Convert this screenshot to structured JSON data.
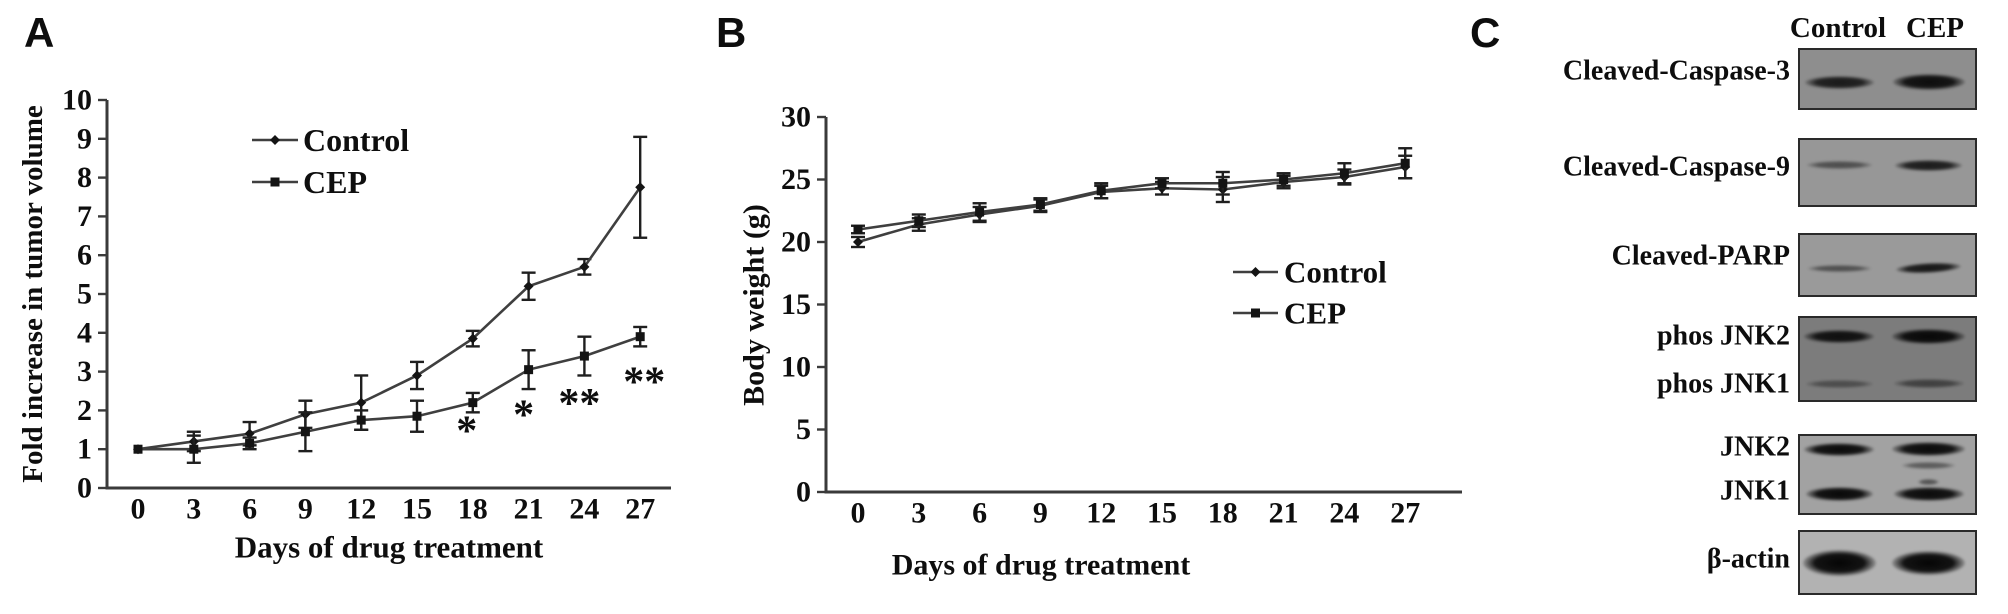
{
  "panel_a": {
    "label": "A"
  },
  "panel_b": {
    "label": "B"
  },
  "panel_c": {
    "label": "C",
    "lane_headers": [
      "Control",
      "CEP"
    ],
    "blots": [
      {
        "labels": [
          "Cleaved-Caspase-3"
        ],
        "bg": "#8e8e8e",
        "bands": [
          {
            "row": 0.56,
            "lane": 0,
            "intensity": 0.85,
            "w": 0.39,
            "h": 13
          },
          {
            "row": 0.56,
            "lane": 1,
            "intensity": 0.95,
            "w": 0.41,
            "h": 16
          }
        ]
      },
      {
        "labels": [
          "Cleaved-Caspase-9"
        ],
        "bg": "#979797",
        "bands": [
          {
            "row": 0.39,
            "lane": 0,
            "intensity": 0.5,
            "w": 0.37,
            "h": 8
          },
          {
            "row": 0.39,
            "lane": 1,
            "intensity": 0.85,
            "w": 0.38,
            "h": 11
          }
        ]
      },
      {
        "labels": [
          "Cleaved-PARP"
        ],
        "bg": "#9a9a9a",
        "bands": [
          {
            "row": 0.55,
            "lane": 0,
            "intensity": 0.5,
            "w": 0.36,
            "h": 7
          },
          {
            "row": 0.55,
            "lane": 1,
            "intensity": 0.88,
            "w": 0.37,
            "h": 10,
            "tilt": -3
          }
        ]
      },
      {
        "labels": [
          "phos JNK2",
          "phos JNK1"
        ],
        "bg": "#7c7c7c",
        "bands": [
          {
            "row": 0.23,
            "lane": 0,
            "intensity": 0.92,
            "w": 0.4,
            "h": 13
          },
          {
            "row": 0.23,
            "lane": 1,
            "intensity": 0.98,
            "w": 0.42,
            "h": 15
          },
          {
            "row": 0.8,
            "lane": 0,
            "intensity": 0.4,
            "w": 0.38,
            "h": 8
          },
          {
            "row": 0.8,
            "lane": 1,
            "intensity": 0.5,
            "w": 0.4,
            "h": 9
          }
        ]
      },
      {
        "labels": [
          "JNK2",
          "JNK1"
        ],
        "bg": "#a2a2a2",
        "bands": [
          {
            "row": 0.17,
            "lane": 0,
            "intensity": 0.97,
            "w": 0.4,
            "h": 13
          },
          {
            "row": 0.17,
            "lane": 1,
            "intensity": 0.97,
            "w": 0.42,
            "h": 14
          },
          {
            "row": 0.38,
            "lane": 1,
            "intensity": 0.45,
            "w": 0.3,
            "h": 7
          },
          {
            "row": 0.6,
            "lane": 1,
            "intensity": 0.5,
            "w": 0.12,
            "h": 6
          },
          {
            "row": 0.75,
            "lane": 0,
            "intensity": 0.98,
            "w": 0.38,
            "h": 14
          },
          {
            "row": 0.75,
            "lane": 1,
            "intensity": 0.97,
            "w": 0.4,
            "h": 14
          }
        ]
      },
      {
        "labels": [
          "β-actin"
        ],
        "bg": "#b2b2b2",
        "bands": [
          {
            "row": 0.51,
            "lane": 0,
            "intensity": 1.0,
            "w": 0.42,
            "h": 26
          },
          {
            "row": 0.51,
            "lane": 1,
            "intensity": 1.0,
            "w": 0.42,
            "h": 24
          }
        ]
      }
    ]
  },
  "chart_data": [
    {
      "type": "line",
      "panel": "A",
      "title": "",
      "xlabel": "Days of drug treatment",
      "ylabel": "Fold increase in tumor volume",
      "x": [
        0,
        3,
        6,
        9,
        12,
        15,
        18,
        21,
        24,
        27
      ],
      "ylim": [
        0,
        10
      ],
      "ytick_step": 1,
      "grid": false,
      "legend_position": "upper-left",
      "series": [
        {
          "name": "Control",
          "marker": "diamond",
          "values": [
            1.0,
            1.2,
            1.4,
            1.9,
            2.2,
            2.9,
            3.85,
            5.2,
            5.7,
            7.75
          ],
          "errors": [
            0,
            0.25,
            0.3,
            0.35,
            0.7,
            0.35,
            0.2,
            0.35,
            0.2,
            1.3
          ]
        },
        {
          "name": "CEP",
          "marker": "square",
          "values": [
            1.0,
            1.0,
            1.15,
            1.45,
            1.75,
            1.85,
            2.2,
            3.05,
            3.4,
            3.9
          ],
          "errors": [
            0,
            0.35,
            0.15,
            0.5,
            0.25,
            0.4,
            0.25,
            0.5,
            0.5,
            0.25
          ]
        }
      ],
      "annotations": [
        {
          "x": 18,
          "text": "*"
        },
        {
          "x": 21,
          "text": "*"
        },
        {
          "x": 24,
          "text": "**"
        },
        {
          "x": 27,
          "text": "**"
        }
      ]
    },
    {
      "type": "line",
      "panel": "B",
      "title": "",
      "xlabel": "Days of drug treatment",
      "ylabel": "Body weight (g)",
      "x": [
        0,
        3,
        6,
        9,
        12,
        15,
        18,
        21,
        24,
        27
      ],
      "ylim": [
        0,
        30
      ],
      "ytick_step": 5,
      "grid": false,
      "legend_position": "middle-right",
      "series": [
        {
          "name": "Control",
          "marker": "diamond",
          "values": [
            20.0,
            21.4,
            22.2,
            22.9,
            24.0,
            24.3,
            24.2,
            24.8,
            25.2,
            26.0
          ],
          "errors": [
            0.4,
            0.5,
            0.6,
            0.5,
            0.5,
            0.5,
            1.0,
            0.5,
            0.6,
            0.9
          ]
        },
        {
          "name": "CEP",
          "marker": "square",
          "values": [
            21.0,
            21.7,
            22.4,
            23.0,
            24.1,
            24.7,
            24.7,
            25.0,
            25.5,
            26.3
          ],
          "errors": [
            0.3,
            0.5,
            0.7,
            0.5,
            0.6,
            0.4,
            0.9,
            0.5,
            0.8,
            1.2
          ]
        }
      ],
      "annotations": []
    }
  ]
}
